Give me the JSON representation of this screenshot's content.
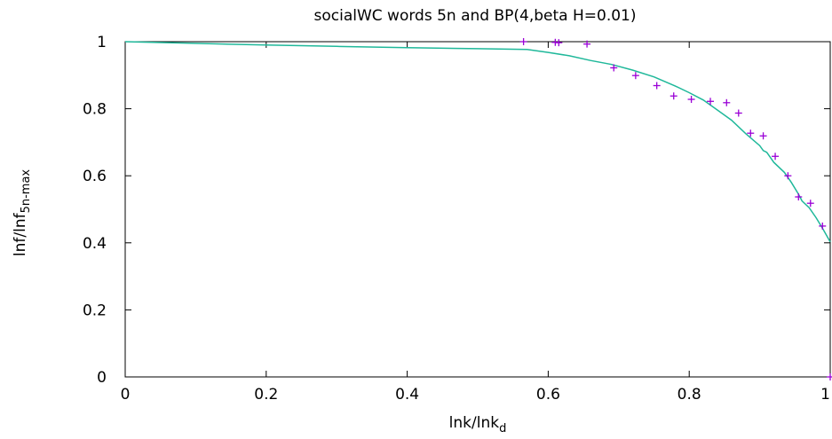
{
  "chart_data": {
    "type": "scatter",
    "title": "socialWC words 5n and BP(4,beta H=0.01)",
    "xlabel": {
      "main": "lnk/lnk",
      "sub": "d"
    },
    "ylabel": {
      "main": "lnf/lnf",
      "sub": "5n-max"
    },
    "xlim": [
      0,
      1
    ],
    "ylim": [
      0,
      1
    ],
    "x_ticks": [
      {
        "value": 0,
        "label": "0"
      },
      {
        "value": 0.2,
        "label": "0.2"
      },
      {
        "value": 0.4,
        "label": "0.4"
      },
      {
        "value": 0.6,
        "label": "0.6"
      },
      {
        "value": 0.8,
        "label": "0.8"
      },
      {
        "value": 1,
        "label": "1"
      }
    ],
    "y_ticks": [
      {
        "value": 0,
        "label": "0"
      },
      {
        "value": 0.2,
        "label": "0.2"
      },
      {
        "value": 0.4,
        "label": "0.4"
      },
      {
        "value": 0.6,
        "label": "0.6"
      },
      {
        "value": 0.8,
        "label": "0.8"
      },
      {
        "value": 1,
        "label": "1"
      }
    ],
    "grid": false,
    "series": [
      {
        "kind": "line",
        "color": "#1fb89a",
        "points": [
          [
            0,
            1.0
          ],
          [
            0.1,
            0.995
          ],
          [
            0.2,
            0.99
          ],
          [
            0.3,
            0.986
          ],
          [
            0.4,
            0.982
          ],
          [
            0.5,
            0.979
          ],
          [
            0.57,
            0.977
          ],
          [
            0.6,
            0.968
          ],
          [
            0.63,
            0.958
          ],
          [
            0.66,
            0.944
          ],
          [
            0.69,
            0.932
          ],
          [
            0.72,
            0.915
          ],
          [
            0.75,
            0.895
          ],
          [
            0.78,
            0.868
          ],
          [
            0.8,
            0.848
          ],
          [
            0.82,
            0.826
          ],
          [
            0.84,
            0.796
          ],
          [
            0.86,
            0.766
          ],
          [
            0.88,
            0.726
          ],
          [
            0.9,
            0.69
          ],
          [
            0.905,
            0.675
          ],
          [
            0.91,
            0.67
          ],
          [
            0.92,
            0.64
          ],
          [
            0.935,
            0.61
          ],
          [
            0.945,
            0.58
          ],
          [
            0.955,
            0.545
          ],
          [
            0.96,
            0.525
          ],
          [
            0.97,
            0.505
          ],
          [
            0.98,
            0.475
          ],
          [
            0.99,
            0.44
          ],
          [
            1.0,
            0.403
          ]
        ]
      },
      {
        "kind": "points",
        "color": "#9a00d6",
        "points": [
          [
            0.565,
            1.0
          ],
          [
            0.61,
            0.998
          ],
          [
            0.615,
            0.997
          ],
          [
            0.655,
            0.993
          ],
          [
            0.693,
            0.922
          ],
          [
            0.724,
            0.899
          ],
          [
            0.754,
            0.869
          ],
          [
            0.778,
            0.838
          ],
          [
            0.803,
            0.828
          ],
          [
            0.83,
            0.822
          ],
          [
            0.853,
            0.818
          ],
          [
            0.87,
            0.787
          ],
          [
            0.887,
            0.727
          ],
          [
            0.905,
            0.719
          ],
          [
            0.922,
            0.658
          ],
          [
            0.94,
            0.6
          ],
          [
            0.955,
            0.537
          ],
          [
            0.972,
            0.518
          ],
          [
            0.989,
            0.45
          ],
          [
            1.0,
            0.0
          ]
        ]
      }
    ]
  }
}
